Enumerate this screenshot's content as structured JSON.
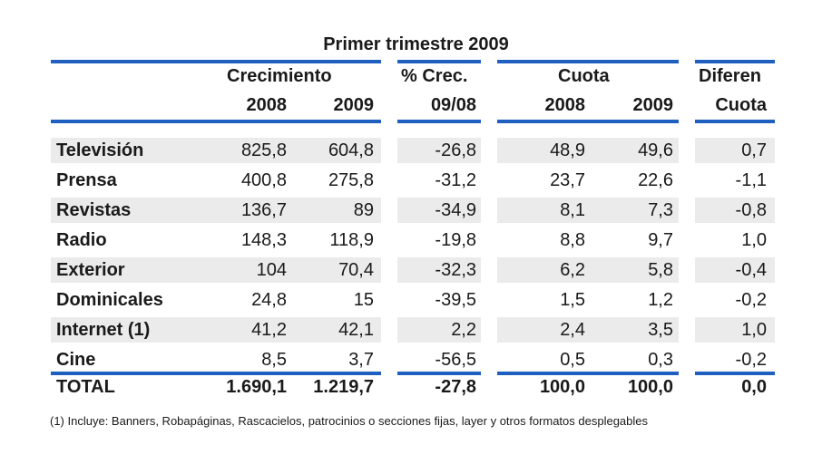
{
  "title": "Primer trimestre 2009",
  "headers": {
    "crecimiento": "Crecimiento",
    "crec_pct": "% Crec.",
    "cuota": "Cuota",
    "diferen": "Diferen",
    "year_2008": "2008",
    "year_2009": "2009",
    "period": "09/08",
    "cuota_2008": "2008",
    "cuota_2009": "2009",
    "cuota_label": "Cuota"
  },
  "rows": [
    {
      "label": "Televisión",
      "c2008": "825,8",
      "c2009": "604,8",
      "crec": "-26,8",
      "q2008": "48,9",
      "q2009": "49,6",
      "dif": "0,7"
    },
    {
      "label": "Prensa",
      "c2008": "400,8",
      "c2009": "275,8",
      "crec": "-31,2",
      "q2008": "23,7",
      "q2009": "22,6",
      "dif": "-1,1"
    },
    {
      "label": "Revistas",
      "c2008": "136,7",
      "c2009": "89",
      "crec": "-34,9",
      "q2008": "8,1",
      "q2009": "7,3",
      "dif": "-0,8"
    },
    {
      "label": "Radio",
      "c2008": "148,3",
      "c2009": "118,9",
      "crec": "-19,8",
      "q2008": "8,8",
      "q2009": "9,7",
      "dif": "1,0"
    },
    {
      "label": "Exterior",
      "c2008": "104",
      "c2009": "70,4",
      "crec": "-32,3",
      "q2008": "6,2",
      "q2009": "5,8",
      "dif": "-0,4"
    },
    {
      "label": "Dominicales",
      "c2008": "24,8",
      "c2009": "15",
      "crec": "-39,5",
      "q2008": "1,5",
      "q2009": "1,2",
      "dif": "-0,2"
    },
    {
      "label": "Internet (1)",
      "c2008": "41,2",
      "c2009": "42,1",
      "crec": "2,2",
      "q2008": "2,4",
      "q2009": "3,5",
      "dif": "1,0"
    },
    {
      "label": "Cine",
      "c2008": "8,5",
      "c2009": "3,7",
      "crec": "-56,5",
      "q2008": "0,5",
      "q2009": "0,3",
      "dif": "-0,2"
    }
  ],
  "total": {
    "label": "TOTAL",
    "c2008": "1.690,1",
    "c2009": "1.219,7",
    "crec": "-27,8",
    "q2008": "100,0",
    "q2009": "100,0",
    "dif": "0,0"
  },
  "footnote": "(1) Incluye: Banners, Robapáginas, Rascacielos, patrocinios o secciones fijas, layer y otros formatos desplegables",
  "colors": {
    "accent": "#1f5fbf",
    "row_shade": "#ebebeb"
  }
}
